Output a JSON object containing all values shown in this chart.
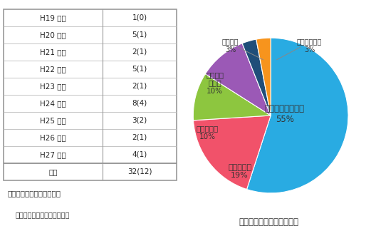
{
  "table_rows": [
    [
      "H19 年度",
      "1(0)"
    ],
    [
      "H20 年度",
      "5(1)"
    ],
    [
      "H21 年度",
      "2(1)"
    ],
    [
      "H22 年度",
      "5(1)"
    ],
    [
      "H23 年度",
      "2(1)"
    ],
    [
      "H24 年度",
      "8(4)"
    ],
    [
      "H25 年度",
      "3(2)"
    ],
    [
      "H26 年度",
      "2(1)"
    ],
    [
      "H27 年度",
      "4(1)"
    ],
    [
      "合計",
      "32(12)"
    ]
  ],
  "table_caption1": "死亡・重傷事故の発生件数",
  "table_caption2": "（　）は死亡事故の発生件数",
  "pie_values": [
    55,
    19,
    10,
    10,
    3,
    3
  ],
  "pie_colors": [
    "#29ABE2",
    "#F1526A",
    "#8DC63F",
    "#9B59B6",
    "#1F4E79",
    "#F7941D"
  ],
  "pie_labels_inside": [
    "マンション駐車場\n55%",
    "月極駐車場\n19%",
    "テナント用\n10%",
    "時間貸し\n駐車場\n10%",
    "ホテル用\n3%",
    "来客用駐車場\n3%"
  ],
  "pie_caption": "死亡・重傷事故の発生場所",
  "background_color": "#ffffff"
}
